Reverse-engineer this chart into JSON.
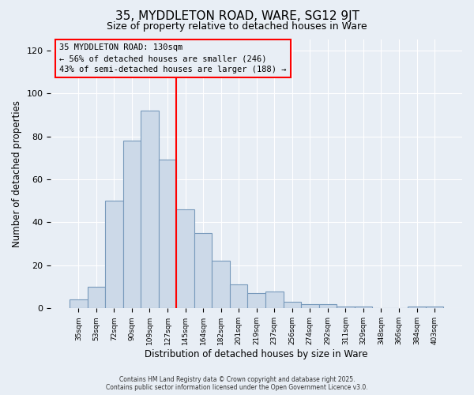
{
  "title1": "35, MYDDLETON ROAD, WARE, SG12 9JT",
  "title2": "Size of property relative to detached houses in Ware",
  "xlabel": "Distribution of detached houses by size in Ware",
  "ylabel": "Number of detached properties",
  "categories": [
    "35sqm",
    "53sqm",
    "72sqm",
    "90sqm",
    "109sqm",
    "127sqm",
    "145sqm",
    "164sqm",
    "182sqm",
    "201sqm",
    "219sqm",
    "237sqm",
    "256sqm",
    "274sqm",
    "292sqm",
    "311sqm",
    "329sqm",
    "348sqm",
    "366sqm",
    "384sqm",
    "403sqm"
  ],
  "values": [
    4,
    10,
    50,
    78,
    92,
    69,
    46,
    35,
    22,
    11,
    7,
    8,
    3,
    2,
    2,
    1,
    1,
    0,
    0,
    1,
    1
  ],
  "bar_color": "#ccd9e8",
  "bar_edge_color": "#7799bb",
  "redline_index": 5,
  "annotation_line1": "35 MYDDLETON ROAD: 130sqm",
  "annotation_line2": "← 56% of detached houses are smaller (246)",
  "annotation_line3": "43% of semi-detached houses are larger (188) →",
  "ylim": [
    0,
    125
  ],
  "yticks": [
    0,
    20,
    40,
    60,
    80,
    100,
    120
  ],
  "footer": "Contains HM Land Registry data © Crown copyright and database right 2025.\nContains public sector information licensed under the Open Government Licence v3.0.",
  "background_color": "#e8eef5",
  "grid_color": "#ffffff"
}
